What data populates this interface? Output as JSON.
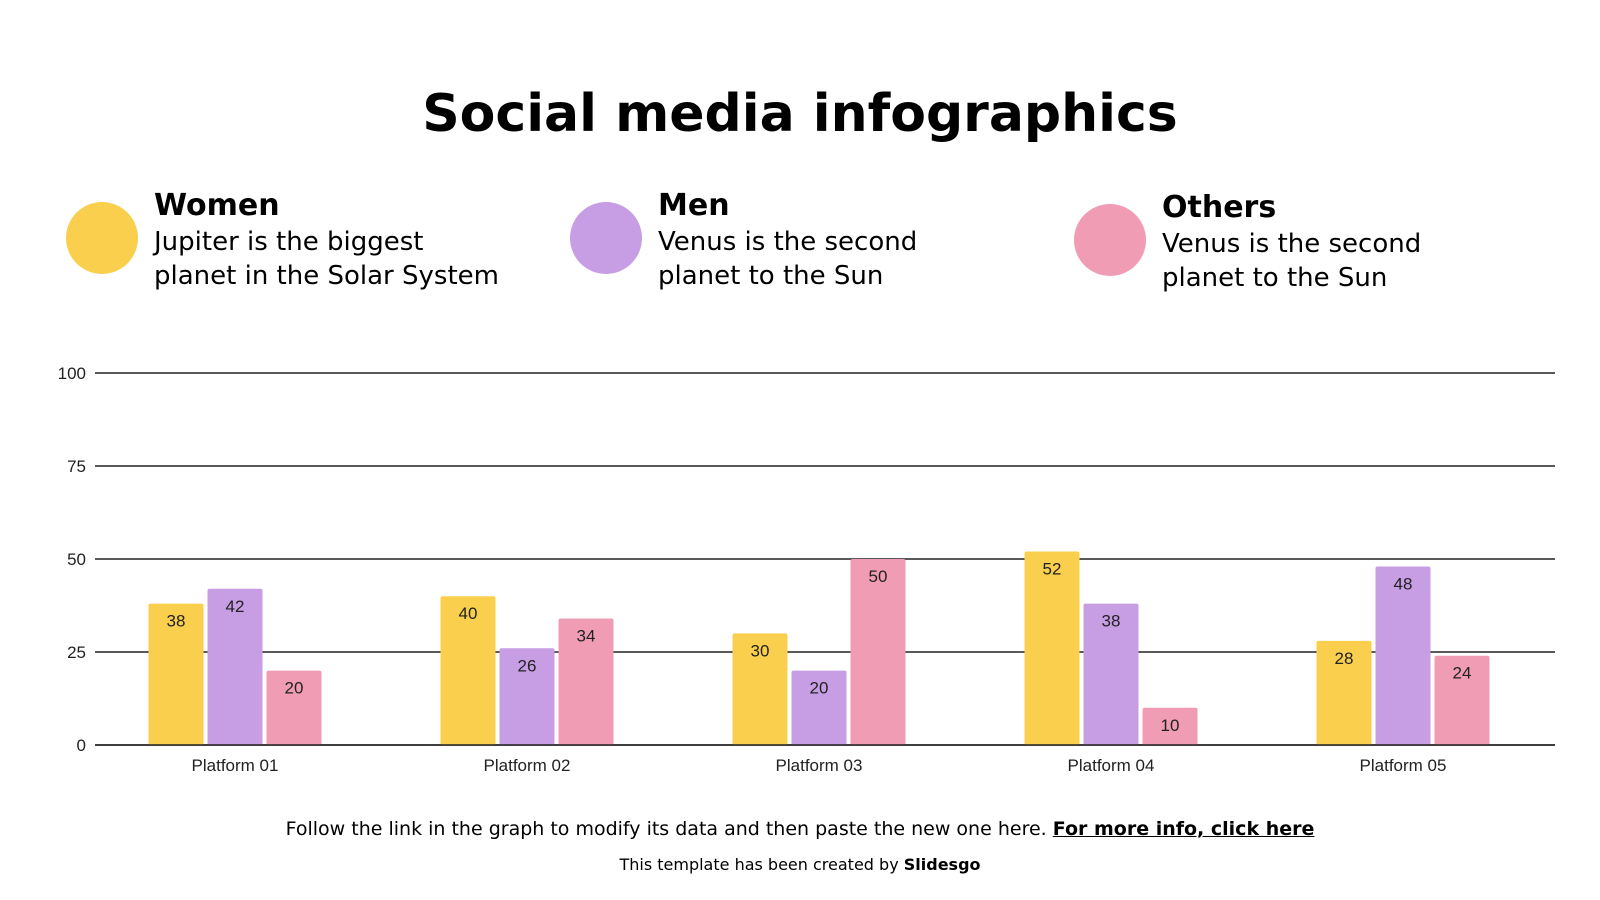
{
  "title": "Social media infographics",
  "legend": [
    {
      "title": "Women",
      "desc1": "Jupiter is the biggest",
      "desc2": "planet in the Solar System",
      "color": "#F9CF4D"
    },
    {
      "title": "Men",
      "desc1": "Venus is the second",
      "desc2": "planet to the Sun",
      "color": "#C79DE3"
    },
    {
      "title": "Others",
      "desc1": "Venus is the second",
      "desc2": "planet to the Sun",
      "color": "#F19CB5"
    }
  ],
  "footer": {
    "text": "Follow the link in the graph to modify its data and then paste the new one here.",
    "link": "For more info, click here",
    "credit_prefix": "This template has been created by",
    "credit_brand": "Slidesgo"
  },
  "chart_data": {
    "type": "bar",
    "title": "",
    "xlabel": "",
    "ylabel": "",
    "categories": [
      "Platform 01",
      "Platform 02",
      "Platform 03",
      "Platform 04",
      "Platform 05"
    ],
    "series": [
      {
        "name": "Women",
        "color": "#F9CF4D",
        "values": [
          38,
          40,
          30,
          52,
          28
        ]
      },
      {
        "name": "Men",
        "color": "#C79DE3",
        "values": [
          42,
          26,
          20,
          38,
          48
        ]
      },
      {
        "name": "Others",
        "color": "#F19CB5",
        "values": [
          20,
          34,
          50,
          10,
          24
        ]
      }
    ],
    "ylim": [
      0,
      100
    ],
    "yticks": [
      0,
      25,
      50,
      75,
      100
    ],
    "grid": true,
    "data_labels": true,
    "legend": "top"
  }
}
